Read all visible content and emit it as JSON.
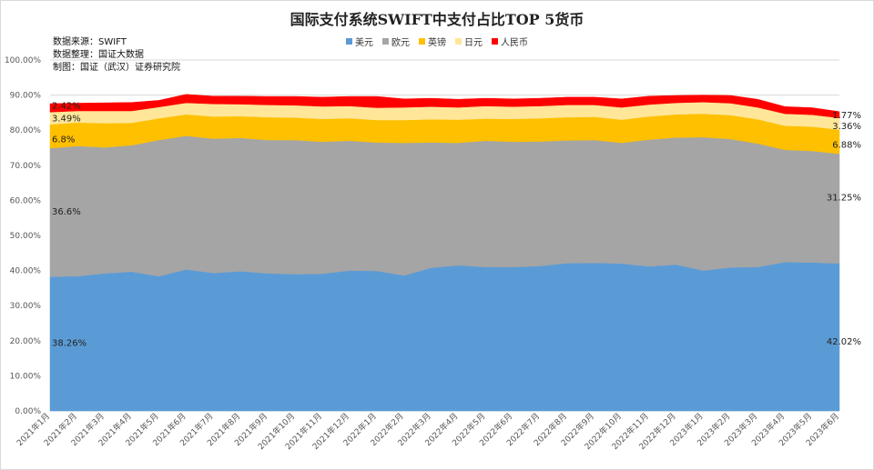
{
  "chart_data": {
    "type": "area",
    "stacked": true,
    "title": "国际支付系统SWIFT中支付占比TOP 5货币",
    "notes": [
      "数据来源：SWIFT",
      "数据整理：国证大数据",
      "制图：国证（武汉）证券研究院"
    ],
    "ylim": [
      0,
      100
    ],
    "yticks": [
      "0.00%",
      "10.00%",
      "20.00%",
      "30.00%",
      "40.00%",
      "50.00%",
      "60.00%",
      "70.00%",
      "80.00%",
      "90.00%",
      "100.00%"
    ],
    "categories": [
      "2021年1月",
      "2021年2月",
      "2021年3月",
      "2021年4月",
      "2021年5月",
      "2021年6月",
      "2021年7月",
      "2021年8月",
      "2021年9月",
      "2021年10月",
      "2021年11月",
      "2021年12月",
      "2022年1月",
      "2022年2月",
      "2022年3月",
      "2022年4月",
      "2022年5月",
      "2022年6月",
      "2022年7月",
      "2022年8月",
      "2022年9月",
      "2022年10月",
      "2022年11月",
      "2022年12月",
      "2023年1月",
      "2023年2月",
      "2023年3月",
      "2023年4月",
      "2023年5月",
      "2023年6月"
    ],
    "series": [
      {
        "name": "美元",
        "color": "#5b9bd5",
        "values": [
          38.26,
          38.4,
          39.2,
          39.7,
          38.4,
          40.3,
          39.3,
          39.8,
          39.2,
          39.0,
          39.1,
          40.0,
          39.9,
          38.6,
          40.8,
          41.5,
          41.0,
          41.0,
          41.3,
          42.1,
          42.2,
          42.0,
          41.2,
          41.7,
          40.0,
          40.9,
          41.0,
          42.4,
          42.3,
          42.02
        ]
      },
      {
        "name": "欧元",
        "color": "#a5a5a5",
        "values": [
          36.6,
          37.1,
          35.9,
          36.0,
          38.8,
          38.1,
          38.3,
          38.0,
          38.0,
          38.2,
          37.6,
          37.0,
          36.6,
          37.8,
          35.7,
          34.9,
          36.0,
          35.7,
          35.5,
          35.0,
          35.0,
          34.4,
          36.1,
          36.2,
          38.0,
          36.6,
          35.2,
          32.0,
          31.8,
          31.25
        ]
      },
      {
        "name": "英镑",
        "color": "#ffc000",
        "values": [
          6.8,
          6.7,
          6.9,
          6.4,
          6.2,
          6.1,
          6.3,
          6.2,
          6.5,
          6.4,
          6.5,
          6.4,
          6.4,
          6.5,
          6.6,
          6.6,
          6.3,
          6.5,
          6.6,
          6.6,
          6.6,
          6.6,
          6.6,
          6.6,
          6.7,
          6.8,
          6.9,
          6.9,
          6.9,
          6.88
        ]
      },
      {
        "name": "日元",
        "color": "#ffe699",
        "values": [
          3.49,
          3.3,
          3.5,
          3.4,
          3.2,
          3.3,
          3.6,
          3.4,
          3.5,
          3.5,
          3.6,
          3.5,
          3.5,
          3.6,
          3.6,
          3.5,
          3.6,
          3.5,
          3.5,
          3.5,
          3.4,
          3.5,
          3.4,
          3.3,
          3.3,
          3.4,
          3.4,
          3.4,
          3.4,
          3.36
        ]
      },
      {
        "name": "人民币",
        "color": "#ff0000",
        "values": [
          2.42,
          2.2,
          2.3,
          2.4,
          1.9,
          2.4,
          2.2,
          2.3,
          2.4,
          2.5,
          2.6,
          2.7,
          3.2,
          2.4,
          2.4,
          2.3,
          2.2,
          2.2,
          2.2,
          2.2,
          2.2,
          2.4,
          2.4,
          2.1,
          2.0,
          2.2,
          2.3,
          2.0,
          2.0,
          1.77
        ]
      }
    ],
    "data_labels": {
      "first": [
        "38.26%",
        "36.6%",
        "6.8%",
        "3.49%",
        "2.42%"
      ],
      "last": [
        "42.02%",
        "31.25%",
        "6.88%",
        "3.36%",
        "1.77%"
      ]
    }
  }
}
